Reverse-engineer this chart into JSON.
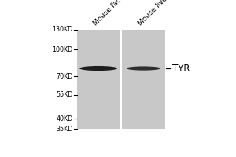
{
  "bg_color": "#ffffff",
  "lane_color": "#c8c8c8",
  "band_color1": "#1e1e1e",
  "band_color2": "#2e2e2e",
  "mw_markers": [
    "130KD",
    "100KD",
    "70KD",
    "55KD",
    "40KD",
    "35KD"
  ],
  "mw_values": [
    130,
    100,
    70,
    55,
    40,
    35
  ],
  "lane_labels": [
    "Mouse face",
    "Mouse liver"
  ],
  "band_label": "TYR",
  "band_mw": 78,
  "marker_fontsize": 5.8,
  "label_fontsize": 8.5,
  "lane_label_fontsize": 6.5
}
